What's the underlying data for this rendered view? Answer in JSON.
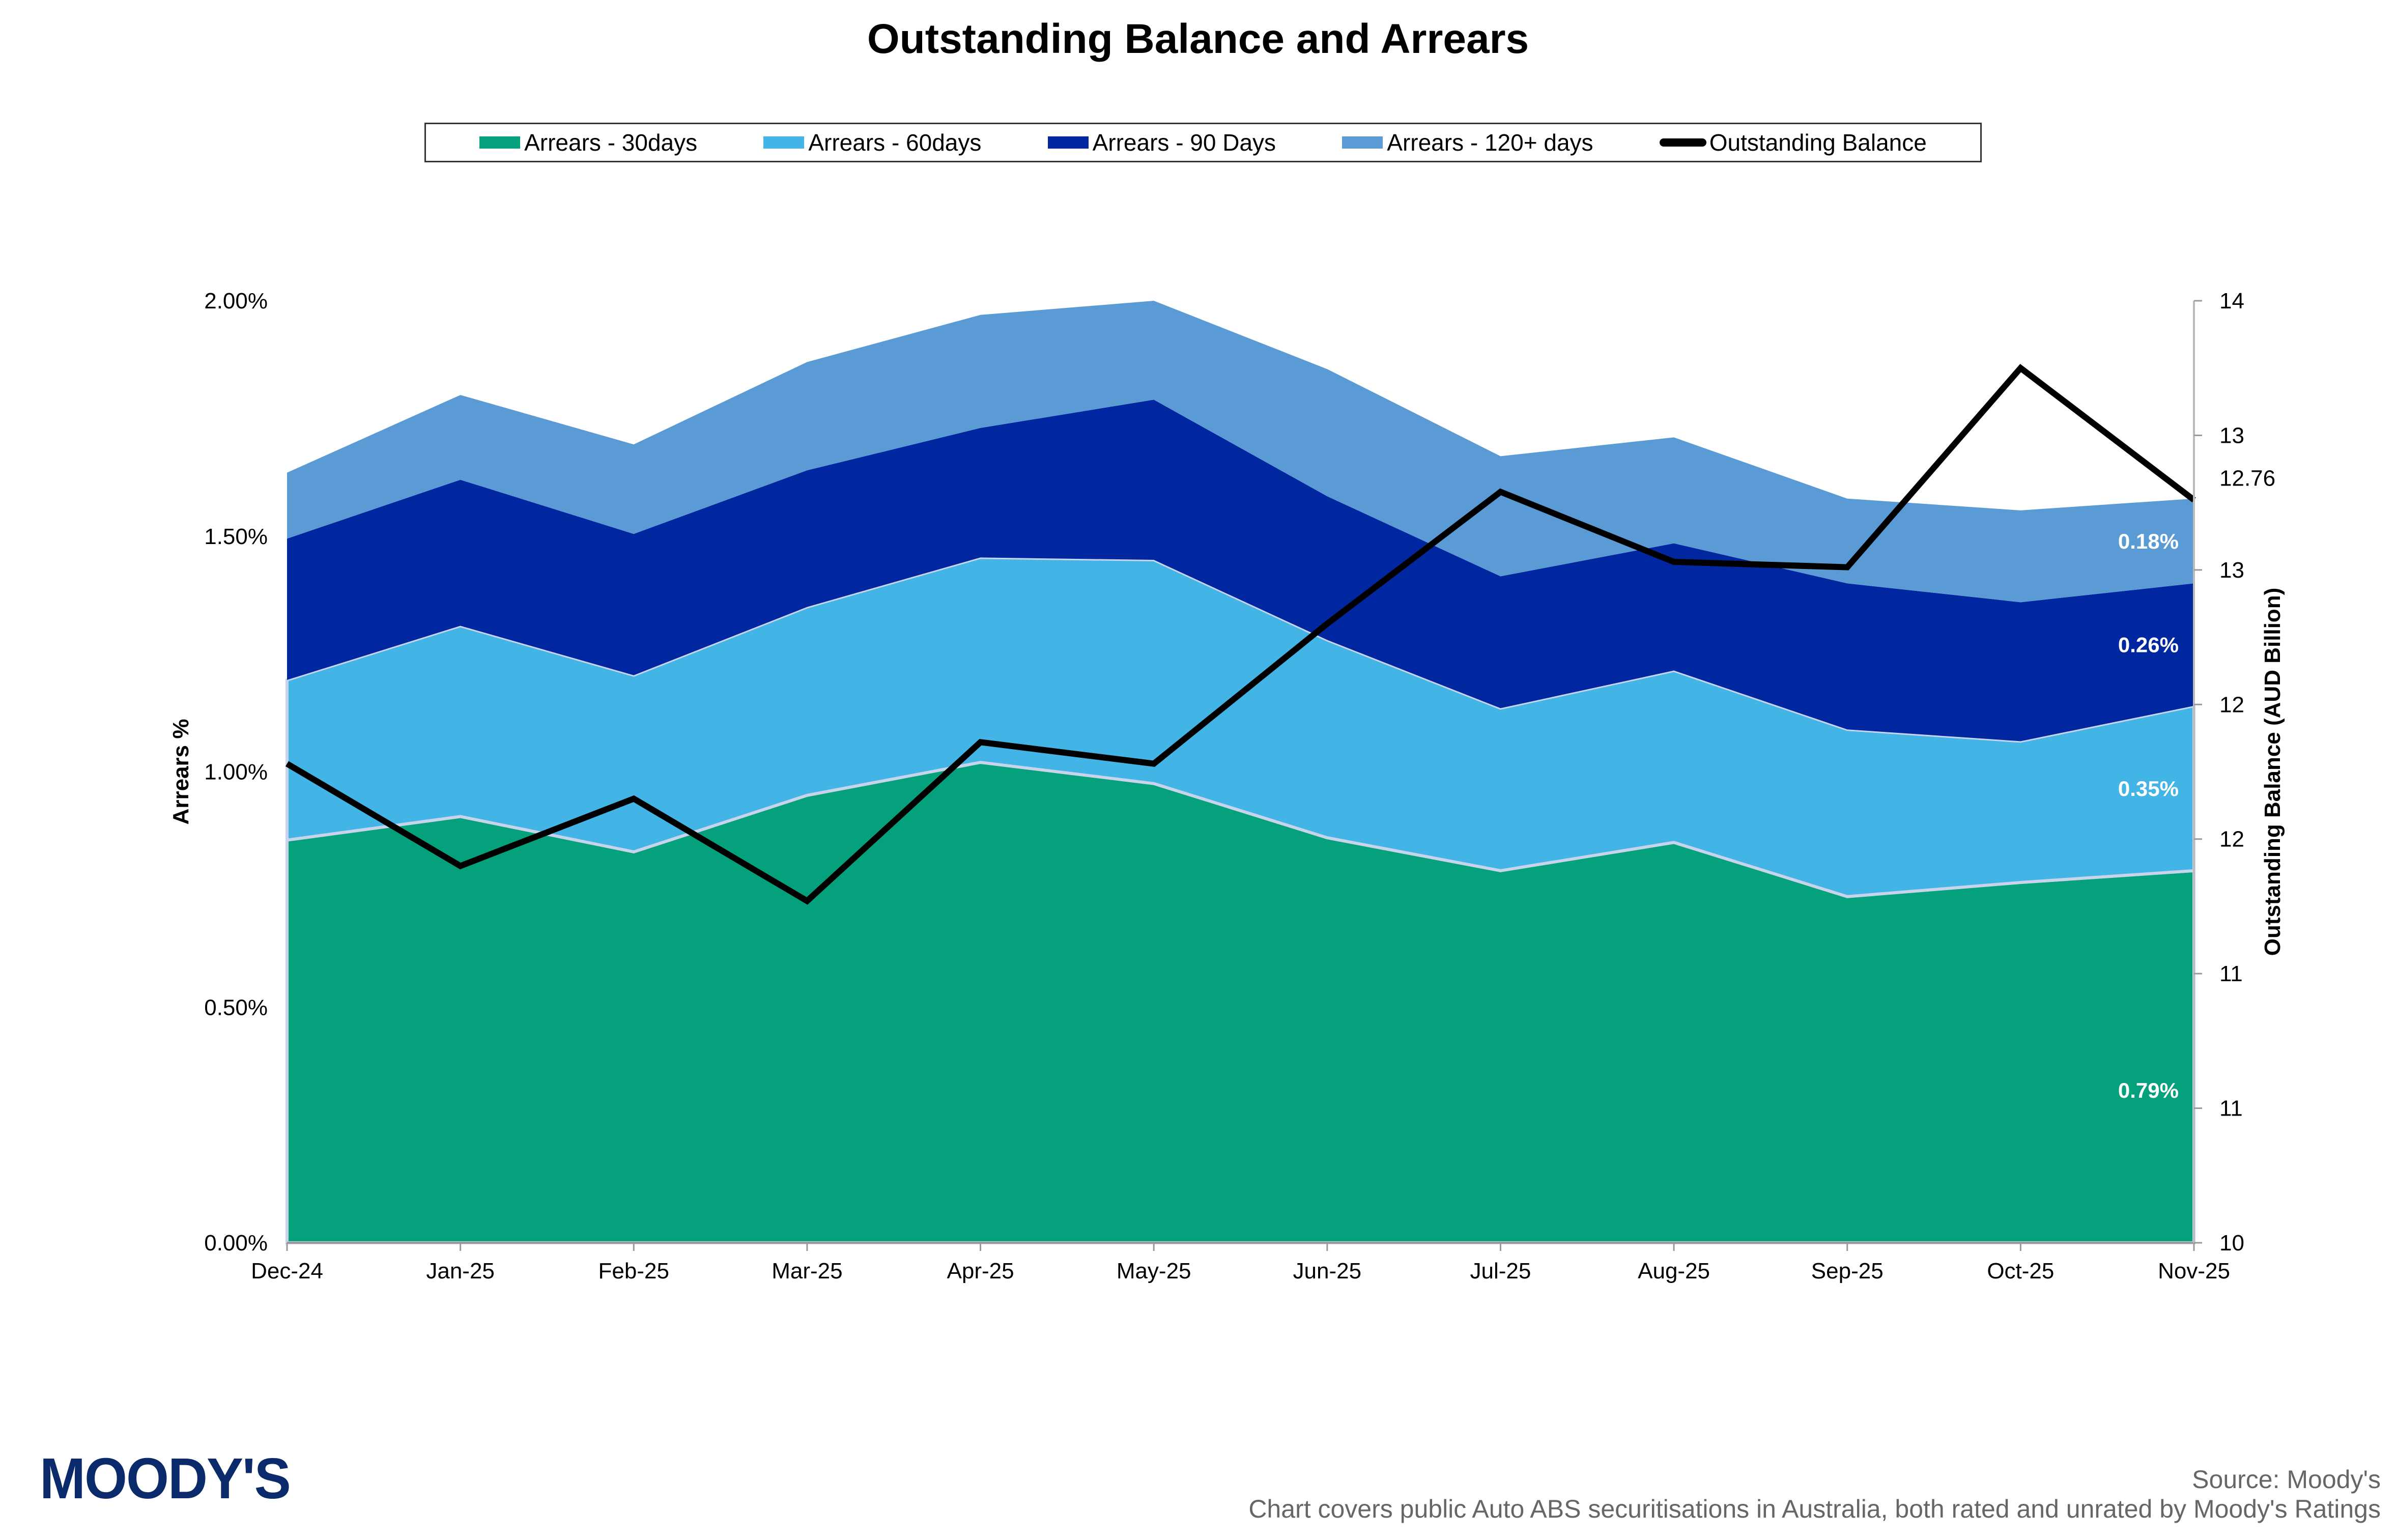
{
  "title": "Outstanding Balance and Arrears",
  "legend": [
    {
      "label": "Arrears - 30days",
      "type": "area",
      "color": "#05a07c"
    },
    {
      "label": "Arrears - 60days",
      "type": "area",
      "color": "#42b4e6"
    },
    {
      "label": "Arrears - 90 Days",
      "type": "area",
      "color": "#0026a0"
    },
    {
      "label": "Arrears - 120+ days",
      "type": "area",
      "color": "#5b9bd5"
    },
    {
      "label": "Outstanding Balance",
      "type": "line",
      "color": "#000000"
    }
  ],
  "footer": {
    "logo": "MOODY'S",
    "source": "Source: Moody's",
    "note": "Chart covers public Auto ABS securitisations in Australia, both rated and unrated by Moody's Ratings"
  },
  "chart_data": {
    "type": "area",
    "stacked": true,
    "title": "Outstanding Balance and Arrears",
    "categories": [
      "Dec-24",
      "Jan-25",
      "Feb-25",
      "Mar-25",
      "Apr-25",
      "May-25",
      "Jun-25",
      "Jul-25",
      "Aug-25",
      "Sep-25",
      "Oct-25",
      "Nov-25"
    ],
    "xlabel": "",
    "ylabel": "Arrears %",
    "y2label": "Outstanding Balance (AUD Billion)",
    "ylim": [
      0,
      2.0
    ],
    "y_ticks": [
      "0.00%",
      "0.50%",
      "1.00%",
      "1.50%",
      "2.00%"
    ],
    "y2lim": [
      10,
      13.5
    ],
    "y2_ticks": [
      "10",
      "11",
      "11",
      "12",
      "12",
      "13",
      "13",
      "14"
    ],
    "legend_position": "top",
    "grid": false,
    "series": [
      {
        "name": "Arrears - 30days",
        "axis": "left",
        "type": "area",
        "color": "#05a07c",
        "values": [
          0.855,
          0.905,
          0.83,
          0.95,
          1.02,
          0.975,
          0.86,
          0.79,
          0.85,
          0.735,
          0.765,
          0.79
        ]
      },
      {
        "name": "Arrears - 60days",
        "axis": "left",
        "type": "area",
        "color": "#42b4e6",
        "values": [
          0.34,
          0.405,
          0.375,
          0.4,
          0.435,
          0.475,
          0.42,
          0.345,
          0.365,
          0.355,
          0.3,
          0.35
        ]
      },
      {
        "name": "Arrears - 90 Days",
        "axis": "left",
        "type": "area",
        "color": "#0026a0",
        "values": [
          0.3,
          0.31,
          0.3,
          0.29,
          0.275,
          0.34,
          0.305,
          0.28,
          0.27,
          0.31,
          0.295,
          0.26
        ]
      },
      {
        "name": "Arrears - 120+ days",
        "axis": "left",
        "type": "area",
        "color": "#5b9bd5",
        "values": [
          0.14,
          0.18,
          0.19,
          0.23,
          0.24,
          0.21,
          0.27,
          0.255,
          0.225,
          0.18,
          0.195,
          0.18
        ]
      },
      {
        "name": "Outstanding Balance",
        "axis": "right",
        "type": "line",
        "color": "#000000",
        "values": [
          11.78,
          11.4,
          11.65,
          11.27,
          11.86,
          11.78,
          12.3,
          12.79,
          12.53,
          12.51,
          13.25,
          12.76
        ]
      }
    ],
    "annotations": [
      {
        "series": "Arrears - 30days",
        "category": "Nov-25",
        "text": "0.79%"
      },
      {
        "series": "Arrears - 60days",
        "category": "Nov-25",
        "text": "0.35%"
      },
      {
        "series": "Arrears - 90 Days",
        "category": "Nov-25",
        "text": "0.26%"
      },
      {
        "series": "Arrears - 120+ days",
        "category": "Nov-25",
        "text": "0.18%"
      },
      {
        "series": "Outstanding Balance",
        "category": "Nov-25",
        "text": "12.76"
      }
    ]
  }
}
